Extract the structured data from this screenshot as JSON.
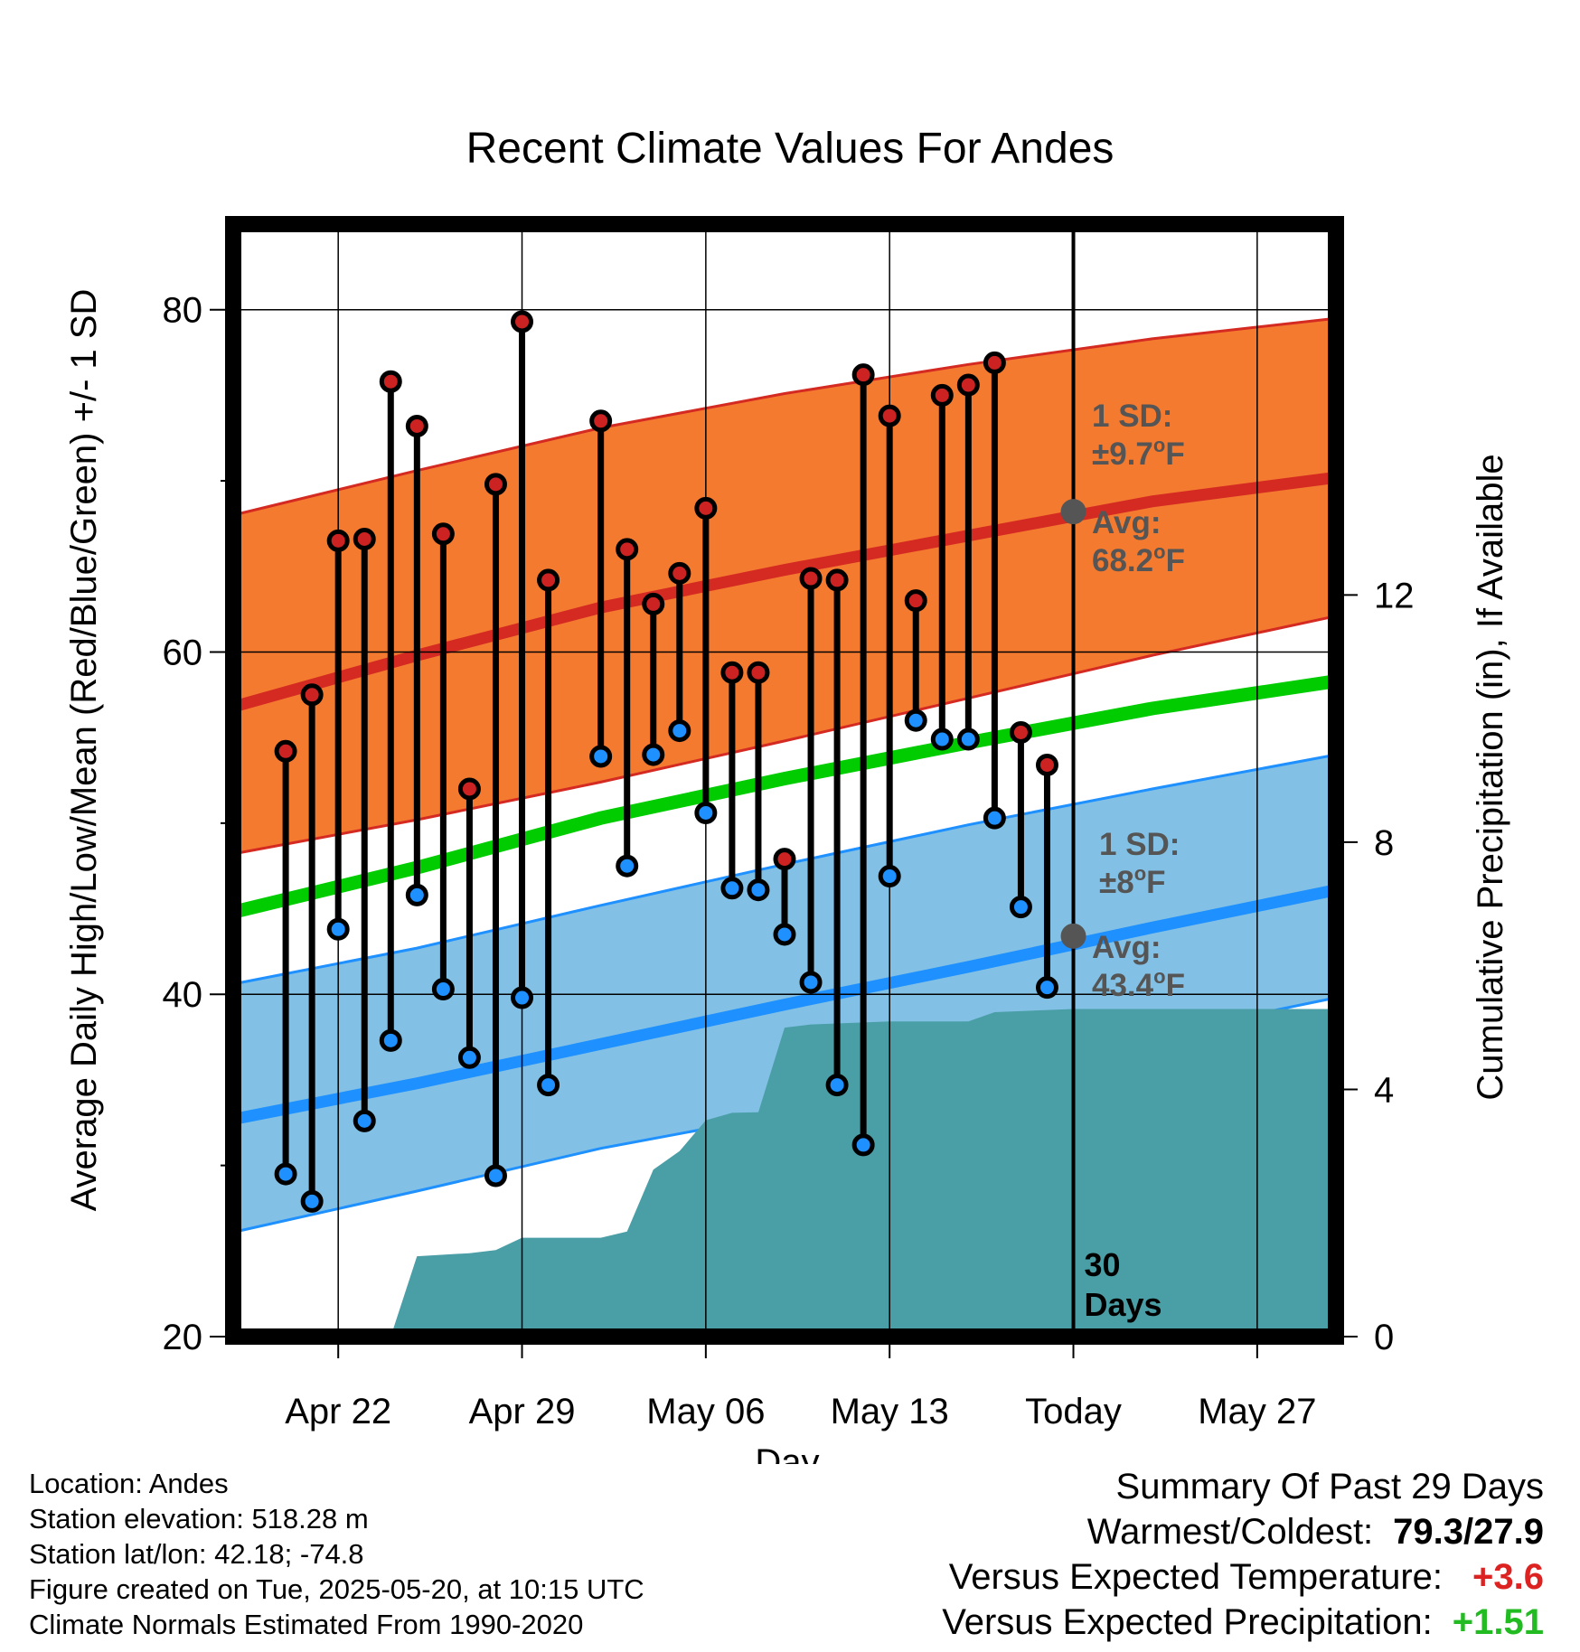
{
  "chart_data": {
    "type": "line",
    "title": "Recent Climate Values For Andes",
    "xlabel": "Day",
    "ylabel": "Average Daily High/Low/Mean (Red/Blue/Green) +/- 1 SD",
    "y2label": "Cumulative Precipitation (in), If Available",
    "x_ticks": [
      "Apr 22",
      "Apr 29",
      "May 06",
      "May 13",
      "Today",
      "May 27"
    ],
    "x_range": [
      "2025-04-18",
      "2025-05-30"
    ],
    "ylim": [
      20,
      85
    ],
    "y_ticks": [
      20,
      40,
      60,
      80
    ],
    "y2lim": [
      0,
      18
    ],
    "y2_ticks": [
      0,
      4,
      8,
      12
    ],
    "grid": true,
    "today": "2025-05-20",
    "days_label": [
      "30",
      "Days"
    ],
    "daily": {
      "dates": [
        "2025-04-20",
        "2025-04-21",
        "2025-04-22",
        "2025-04-23",
        "2025-04-24",
        "2025-04-25",
        "2025-04-26",
        "2025-04-27",
        "2025-04-28",
        "2025-04-29",
        "2025-04-30",
        "2025-05-02",
        "2025-05-03",
        "2025-05-04",
        "2025-05-05",
        "2025-05-06",
        "2025-05-07",
        "2025-05-08",
        "2025-05-09",
        "2025-05-10",
        "2025-05-11",
        "2025-05-12",
        "2025-05-13",
        "2025-05-14",
        "2025-05-15",
        "2025-05-16",
        "2025-05-17",
        "2025-05-18",
        "2025-05-19"
      ],
      "high": [
        54.2,
        57.5,
        66.5,
        66.6,
        75.8,
        73.2,
        66.9,
        52.0,
        69.8,
        79.3,
        64.2,
        73.5,
        66.0,
        62.8,
        64.6,
        68.4,
        58.8,
        58.8,
        47.9,
        64.3,
        64.2,
        76.2,
        73.8,
        63.0,
        75.0,
        75.6,
        76.9,
        55.3,
        53.4
      ],
      "low": [
        29.5,
        27.9,
        43.8,
        32.6,
        37.3,
        45.8,
        40.3,
        36.3,
        29.4,
        39.8,
        34.7,
        53.9,
        47.5,
        54.0,
        55.4,
        50.6,
        46.2,
        46.1,
        43.5,
        40.7,
        34.7,
        31.2,
        46.9,
        56.0,
        54.9,
        54.9,
        50.3,
        45.1,
        40.4
      ]
    },
    "normals": {
      "dates": [
        "2025-04-18",
        "2025-04-25",
        "2025-05-02",
        "2025-05-09",
        "2025-05-16",
        "2025-05-23",
        "2025-05-30"
      ],
      "high_avg": [
        56.8,
        59.8,
        62.6,
        64.8,
        66.8,
        68.8,
        70.2
      ],
      "high_upper": [
        68.0,
        70.6,
        73.1,
        75.1,
        76.8,
        78.3,
        79.5
      ],
      "high_lower": [
        48.2,
        50.2,
        52.4,
        54.8,
        57.3,
        59.8,
        62.1
      ],
      "mean_avg": [
        44.8,
        47.4,
        50.3,
        52.6,
        54.7,
        56.7,
        58.3
      ],
      "low_avg": [
        32.7,
        34.8,
        37.1,
        39.4,
        41.6,
        43.9,
        46.1
      ],
      "low_upper": [
        40.6,
        42.7,
        45.2,
        47.6,
        49.9,
        52.0,
        54.0
      ],
      "low_lower": [
        26.1,
        28.5,
        31.0,
        33.0,
        35.0,
        37.6,
        39.8
      ]
    },
    "precip": {
      "dates": [
        "2025-04-24",
        "2025-04-25",
        "2025-04-27",
        "2025-04-28",
        "2025-04-29",
        "2025-05-02",
        "2025-05-03",
        "2025-05-04",
        "2025-05-05",
        "2025-05-06",
        "2025-05-07",
        "2025-05-08",
        "2025-05-09",
        "2025-05-10",
        "2025-05-13",
        "2025-05-16",
        "2025-05-17",
        "2025-05-20",
        "2025-05-30"
      ],
      "values": [
        0.0,
        1.3,
        1.35,
        1.4,
        1.6,
        1.6,
        1.7,
        2.7,
        3.0,
        3.5,
        3.62,
        3.63,
        5.0,
        5.05,
        5.1,
        5.1,
        5.25,
        5.3,
        5.3
      ]
    },
    "annotations": {
      "high_sd": [
        "1 SD:",
        "±9.7",
        "o",
        "F"
      ],
      "high_avg": [
        "Avg:",
        "68.2",
        "o",
        "F"
      ],
      "low_sd": [
        "1 SD:",
        "±8",
        "o",
        "F"
      ],
      "low_avg": [
        "Avg:",
        "43.4",
        "o",
        "F"
      ],
      "high_avg_value": 68.2,
      "low_avg_value": 43.4
    },
    "colors": {
      "high_band": "#f47a30",
      "high_line": "#d42a22",
      "low_band": "#82c1e5",
      "low_line": "#1e90ff",
      "mean_line": "#00cc00",
      "precip": "#4a9ea6",
      "high_marker": "#cc2222",
      "low_marker": "#1e90ff",
      "annotation": "#555555"
    }
  },
  "info": {
    "location": "Location: Andes",
    "elevation": "Station elevation: 518.28 m",
    "latlon": "Station lat/lon: 42.18; -74.8",
    "created": "Figure created on Tue, 2025-05-20, at 10:15 UTC",
    "normals": "Climate Normals Estimated From 1990-2020"
  },
  "summary": {
    "title": "Summary Of Past 29 Days",
    "warm_cold_label": "Warmest/Coldest:",
    "warm_cold_value": "79.3/27.9",
    "temp_label": "Versus Expected Temperature:",
    "temp_value": "+3.6",
    "temp_color": "#dd2222",
    "precip_label": "Versus Expected Precipitation:",
    "precip_value": "+1.51",
    "precip_color": "#22bb22"
  }
}
